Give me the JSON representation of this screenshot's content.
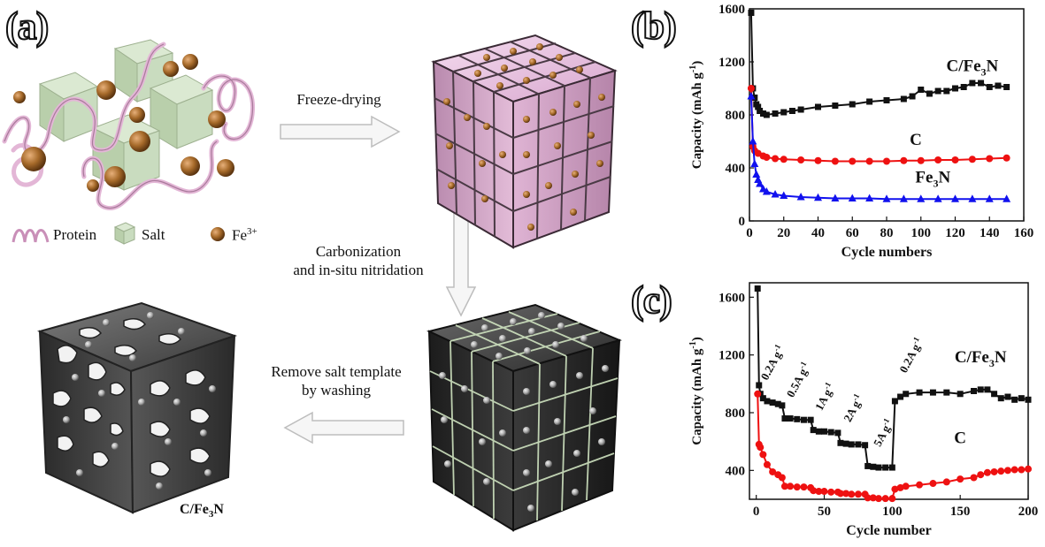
{
  "panel_labels": [
    "(a)",
    "(b)",
    "(c)"
  ],
  "legend": {
    "protein": "Protein",
    "salt": "Salt",
    "iron": "Fe",
    "iron_charge": "3+"
  },
  "steps": {
    "freeze": "Freeze-drying",
    "carbon_line1": "Carbonization",
    "carbon_line2": "and in-situ nitridation",
    "remove_line1": "Remove salt template",
    "remove_line2": "by washing"
  },
  "final_label": {
    "main": "C/Fe",
    "sub": "3",
    "tail": "N"
  },
  "colors": {
    "cfe3n": "#111111",
    "c": "#ee1111",
    "fe3n": "#1111ee",
    "salt": "#c9dcbf",
    "protein": "#e3b6d6",
    "iron": "#a66a2a"
  },
  "chart_data": [
    {
      "type": "scatter",
      "panel": "(b)",
      "xlabel": "Cycle numbers",
      "ylabel": "Capacity (mAh g",
      "ylabel_sup": "-1",
      "ylabel_tail": ")",
      "xlim": [
        0,
        160
      ],
      "ylim": [
        0,
        1600
      ],
      "xticks": [
        0,
        20,
        40,
        60,
        80,
        100,
        120,
        140,
        160
      ],
      "yticks": [
        0,
        400,
        800,
        1200,
        1600
      ],
      "series": [
        {
          "name": "C/Fe3N",
          "color": "#111111",
          "marker": "square",
          "x": [
            1,
            2,
            3,
            4,
            5,
            6,
            8,
            10,
            15,
            20,
            25,
            30,
            40,
            50,
            60,
            70,
            80,
            90,
            95,
            100,
            105,
            110,
            115,
            120,
            125,
            130,
            135,
            140,
            145,
            150
          ],
          "y": [
            1570,
            1000,
            930,
            880,
            860,
            830,
            810,
            800,
            810,
            820,
            830,
            840,
            860,
            870,
            880,
            900,
            910,
            920,
            940,
            990,
            960,
            980,
            980,
            1000,
            1010,
            1040,
            1040,
            1010,
            1020,
            1010
          ]
        },
        {
          "name": "C",
          "color": "#ee1111",
          "marker": "circle",
          "x": [
            1,
            2,
            3,
            5,
            8,
            10,
            15,
            20,
            30,
            40,
            50,
            60,
            70,
            80,
            90,
            100,
            110,
            120,
            130,
            140,
            150
          ],
          "y": [
            1000,
            560,
            530,
            510,
            490,
            480,
            470,
            465,
            460,
            455,
            450,
            450,
            450,
            450,
            455,
            455,
            460,
            460,
            465,
            470,
            475
          ]
        },
        {
          "name": "Fe3N",
          "color": "#1111ee",
          "marker": "triangle",
          "x": [
            1,
            2,
            3,
            4,
            5,
            6,
            8,
            10,
            15,
            20,
            30,
            40,
            50,
            60,
            70,
            80,
            90,
            100,
            110,
            120,
            130,
            140,
            150
          ],
          "y": [
            940,
            600,
            430,
            350,
            310,
            280,
            240,
            220,
            200,
            190,
            180,
            175,
            170,
            170,
            170,
            165,
            165,
            165,
            165,
            165,
            165,
            165,
            165
          ]
        }
      ],
      "labels": [
        {
          "main": "C/Fe",
          "sub": "3",
          "tail": "N",
          "x": 130,
          "y": 1130,
          "color": "#111111"
        },
        {
          "main": "C",
          "sub": "",
          "tail": "",
          "x": 97,
          "y": 575,
          "color": "#111111"
        },
        {
          "main": "Fe",
          "sub": "3",
          "tail": "N",
          "x": 107,
          "y": 290,
          "color": "#111111"
        }
      ]
    },
    {
      "type": "scatter",
      "panel": "(c)",
      "xlabel": "Cycle number",
      "ylabel": "Capacity (mAh g",
      "ylabel_sup": "-1",
      "ylabel_tail": ")",
      "xlim": [
        -5,
        200
      ],
      "ylim": [
        200,
        1700
      ],
      "xticks": [
        0,
        50,
        100,
        150,
        200
      ],
      "yticks": [
        400,
        800,
        1200,
        1600
      ],
      "series": [
        {
          "name": "C/Fe3N",
          "color": "#111111",
          "marker": "square",
          "x": [
            1,
            2,
            3,
            5,
            8,
            12,
            16,
            19,
            21,
            25,
            30,
            35,
            40,
            42,
            46,
            50,
            55,
            60,
            62,
            66,
            70,
            75,
            80,
            82,
            86,
            90,
            95,
            100,
            102,
            106,
            110,
            120,
            130,
            140,
            150,
            160,
            165,
            170,
            175,
            180,
            185,
            190,
            195,
            200
          ],
          "y": [
            1660,
            990,
            930,
            900,
            880,
            870,
            860,
            850,
            760,
            760,
            755,
            750,
            750,
            680,
            670,
            670,
            665,
            660,
            590,
            585,
            580,
            580,
            575,
            430,
            425,
            420,
            420,
            420,
            880,
            910,
            930,
            940,
            940,
            940,
            930,
            950,
            960,
            960,
            930,
            900,
            910,
            890,
            900,
            890
          ]
        },
        {
          "name": "C",
          "color": "#ee1111",
          "marker": "circle",
          "x": [
            1,
            2,
            3,
            5,
            8,
            12,
            16,
            19,
            21,
            25,
            30,
            35,
            40,
            42,
            46,
            50,
            55,
            60,
            62,
            66,
            70,
            75,
            80,
            82,
            86,
            90,
            95,
            100,
            102,
            106,
            110,
            120,
            130,
            140,
            150,
            160,
            165,
            170,
            175,
            180,
            185,
            190,
            195,
            200
          ],
          "y": [
            930,
            580,
            560,
            510,
            440,
            390,
            370,
            350,
            290,
            290,
            285,
            285,
            280,
            260,
            255,
            255,
            250,
            250,
            240,
            240,
            235,
            235,
            235,
            210,
            210,
            205,
            205,
            205,
            270,
            280,
            290,
            300,
            310,
            320,
            340,
            350,
            370,
            385,
            390,
            395,
            400,
            405,
            405,
            410
          ]
        }
      ],
      "rate_labels": [
        {
          "text": "0.2A g",
          "sup": "-1",
          "x": 8,
          "y": 1020
        },
        {
          "text": "0.5A g",
          "sup": "-1",
          "x": 27,
          "y": 900
        },
        {
          "text": "1A g",
          "sup": "-1",
          "x": 48,
          "y": 810
        },
        {
          "text": "2A g",
          "sup": "-1",
          "x": 69,
          "y": 730
        },
        {
          "text": "5A g",
          "sup": "-1",
          "x": 91,
          "y": 560
        },
        {
          "text": "0.2A g",
          "sup": "-1",
          "x": 110,
          "y": 1070
        }
      ],
      "labels": [
        {
          "main": "C/Fe",
          "sub": "3",
          "tail": "N",
          "x": 165,
          "y": 1150,
          "color": "#111111"
        },
        {
          "main": "C",
          "sub": "",
          "tail": "",
          "x": 150,
          "y": 590,
          "color": "#111111"
        }
      ]
    }
  ]
}
